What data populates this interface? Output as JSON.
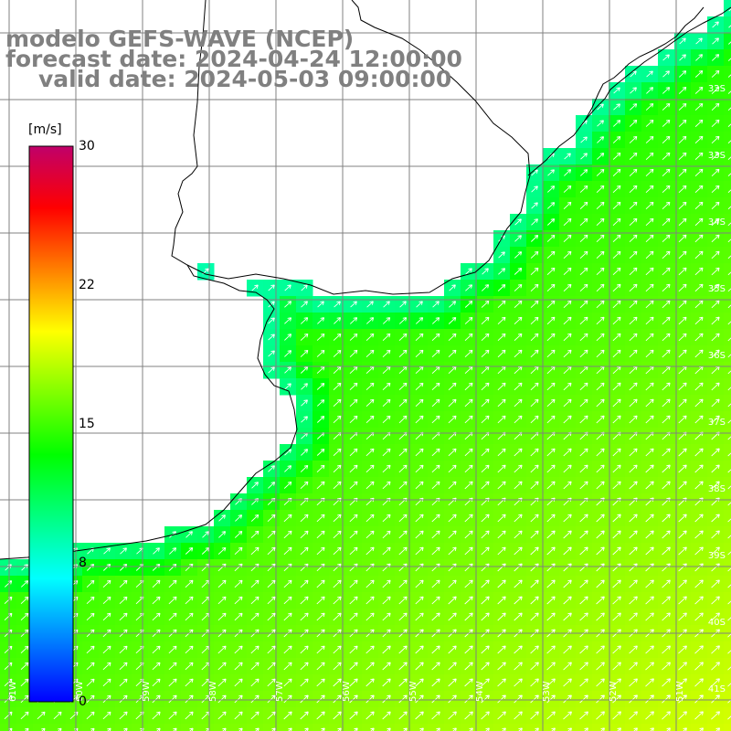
{
  "title": {
    "model": "modelo GEFS-WAVE (NCEP)",
    "forecast": "forecast date: 2024-04-24 12:00:00",
    "valid": "valid date: 2024-05-03 09:00:00"
  },
  "colorbar": {
    "unit": "[m/s]",
    "ticks": [
      "30",
      "22",
      "15",
      "8",
      "0"
    ],
    "colors": [
      "#0000ff",
      "#0080ff",
      "#00ffff",
      "#00ff80",
      "#00ff00",
      "#80ff00",
      "#ffff00",
      "#ff8000",
      "#ff0000",
      "#c0006a"
    ]
  },
  "map": {
    "parameter": "wind speed",
    "lat_labels": [
      "32S",
      "33S",
      "34S",
      "35S",
      "36S",
      "37S",
      "38S",
      "39S",
      "40S",
      "41S"
    ],
    "lon_labels": [
      "61W",
      "60W",
      "59W",
      "58W",
      "57W",
      "56W",
      "55W",
      "54W",
      "53W",
      "52W",
      "51W"
    ],
    "background": "#ffffff",
    "arrow_color": "#ffffff",
    "coast_color": "#000000",
    "grid_color": "#808080"
  }
}
